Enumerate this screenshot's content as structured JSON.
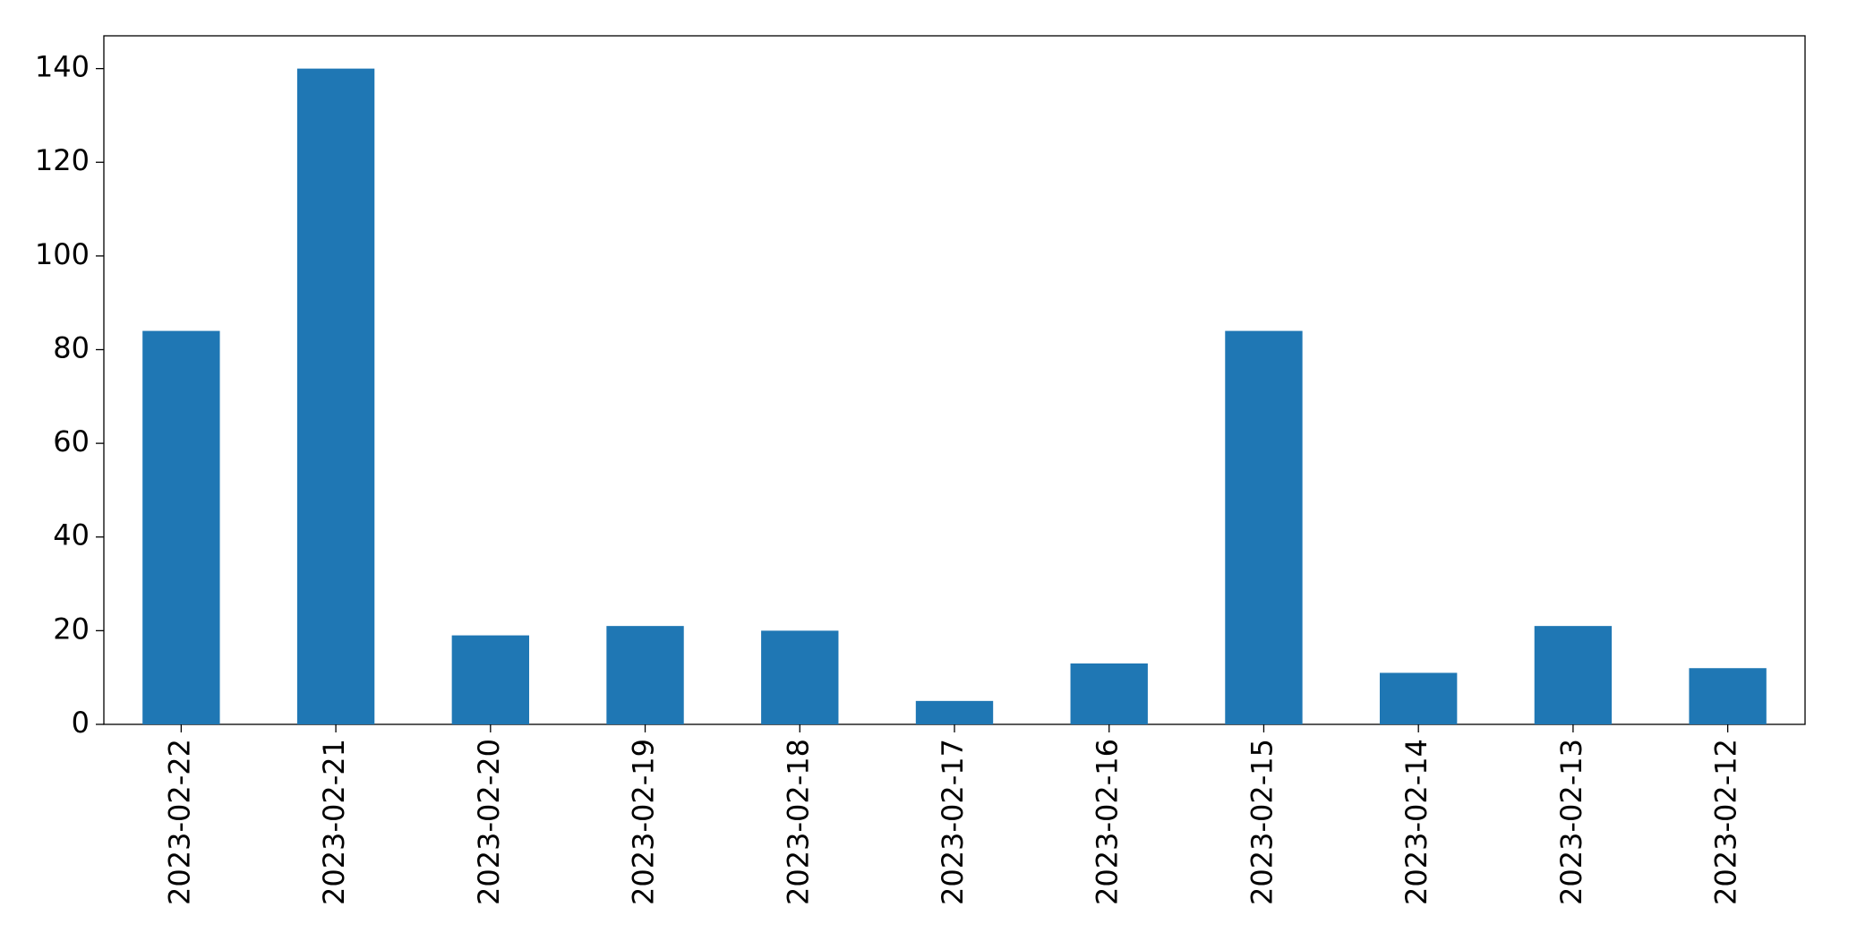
{
  "chart_data": {
    "type": "bar",
    "categories": [
      "2023-02-22",
      "2023-02-21",
      "2023-02-20",
      "2023-02-19",
      "2023-02-18",
      "2023-02-17",
      "2023-02-16",
      "2023-02-15",
      "2023-02-14",
      "2023-02-13",
      "2023-02-12"
    ],
    "values": [
      84,
      140,
      19,
      21,
      20,
      5,
      13,
      84,
      11,
      21,
      12
    ],
    "color": "#1f77b4",
    "ylim": [
      0,
      147
    ],
    "yticks": [
      0,
      20,
      40,
      60,
      80,
      100,
      120,
      140
    ],
    "grid": false
  }
}
